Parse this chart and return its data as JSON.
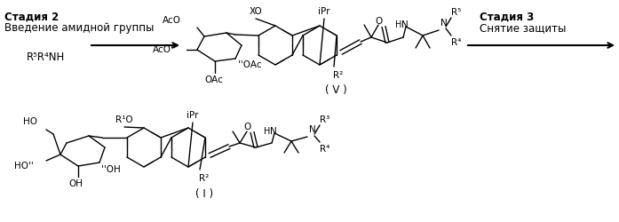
{
  "background_color": "#ffffff",
  "fig_width": 6.97,
  "fig_height": 2.51,
  "dpi": 100,
  "text_stadia2": "Стадия 2",
  "text_vvedenie": "Введение амидной группы",
  "text_reagent": "R⁵R⁴NH",
  "text_stadia3": "Стадия 3",
  "text_snyatie": "Снятие защиты",
  "label_V": "( V )",
  "label_I": "( I )"
}
